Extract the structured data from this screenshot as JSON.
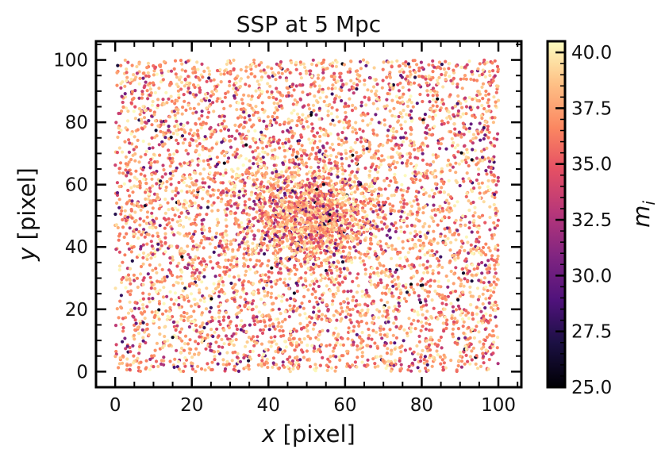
{
  "chart_data": {
    "type": "scatter",
    "title": "SSP at 5 Mpc",
    "xlabel_var": "x",
    "xlabel_unit": " [pixel]",
    "ylabel_var": "y",
    "ylabel_unit": " [pixel]",
    "xlim": [
      -5,
      106
    ],
    "ylim": [
      -5,
      106
    ],
    "xticks": [
      0,
      20,
      40,
      60,
      80,
      100
    ],
    "yticks": [
      0,
      20,
      40,
      60,
      80,
      100
    ],
    "grid": false,
    "colormap": "magma",
    "colorbar": {
      "label_var": "m",
      "label_sub": "i",
      "range": [
        25,
        40.5
      ],
      "ticks": [
        "25.0",
        "27.5",
        "30.0",
        "32.5",
        "35.0",
        "37.5",
        "40.0"
      ],
      "tick_values": [
        25.0,
        27.5,
        30.0,
        32.5,
        35.0,
        37.5,
        40.0
      ]
    },
    "points": {
      "description_note": "",
      "background_count": 5200,
      "background_x_range": [
        0,
        100
      ],
      "background_y_range": [
        0,
        100
      ],
      "cluster_center": [
        50,
        50
      ],
      "cluster_count": 1200,
      "cluster_sigma": 8,
      "mag_typical": 37.5
    }
  }
}
